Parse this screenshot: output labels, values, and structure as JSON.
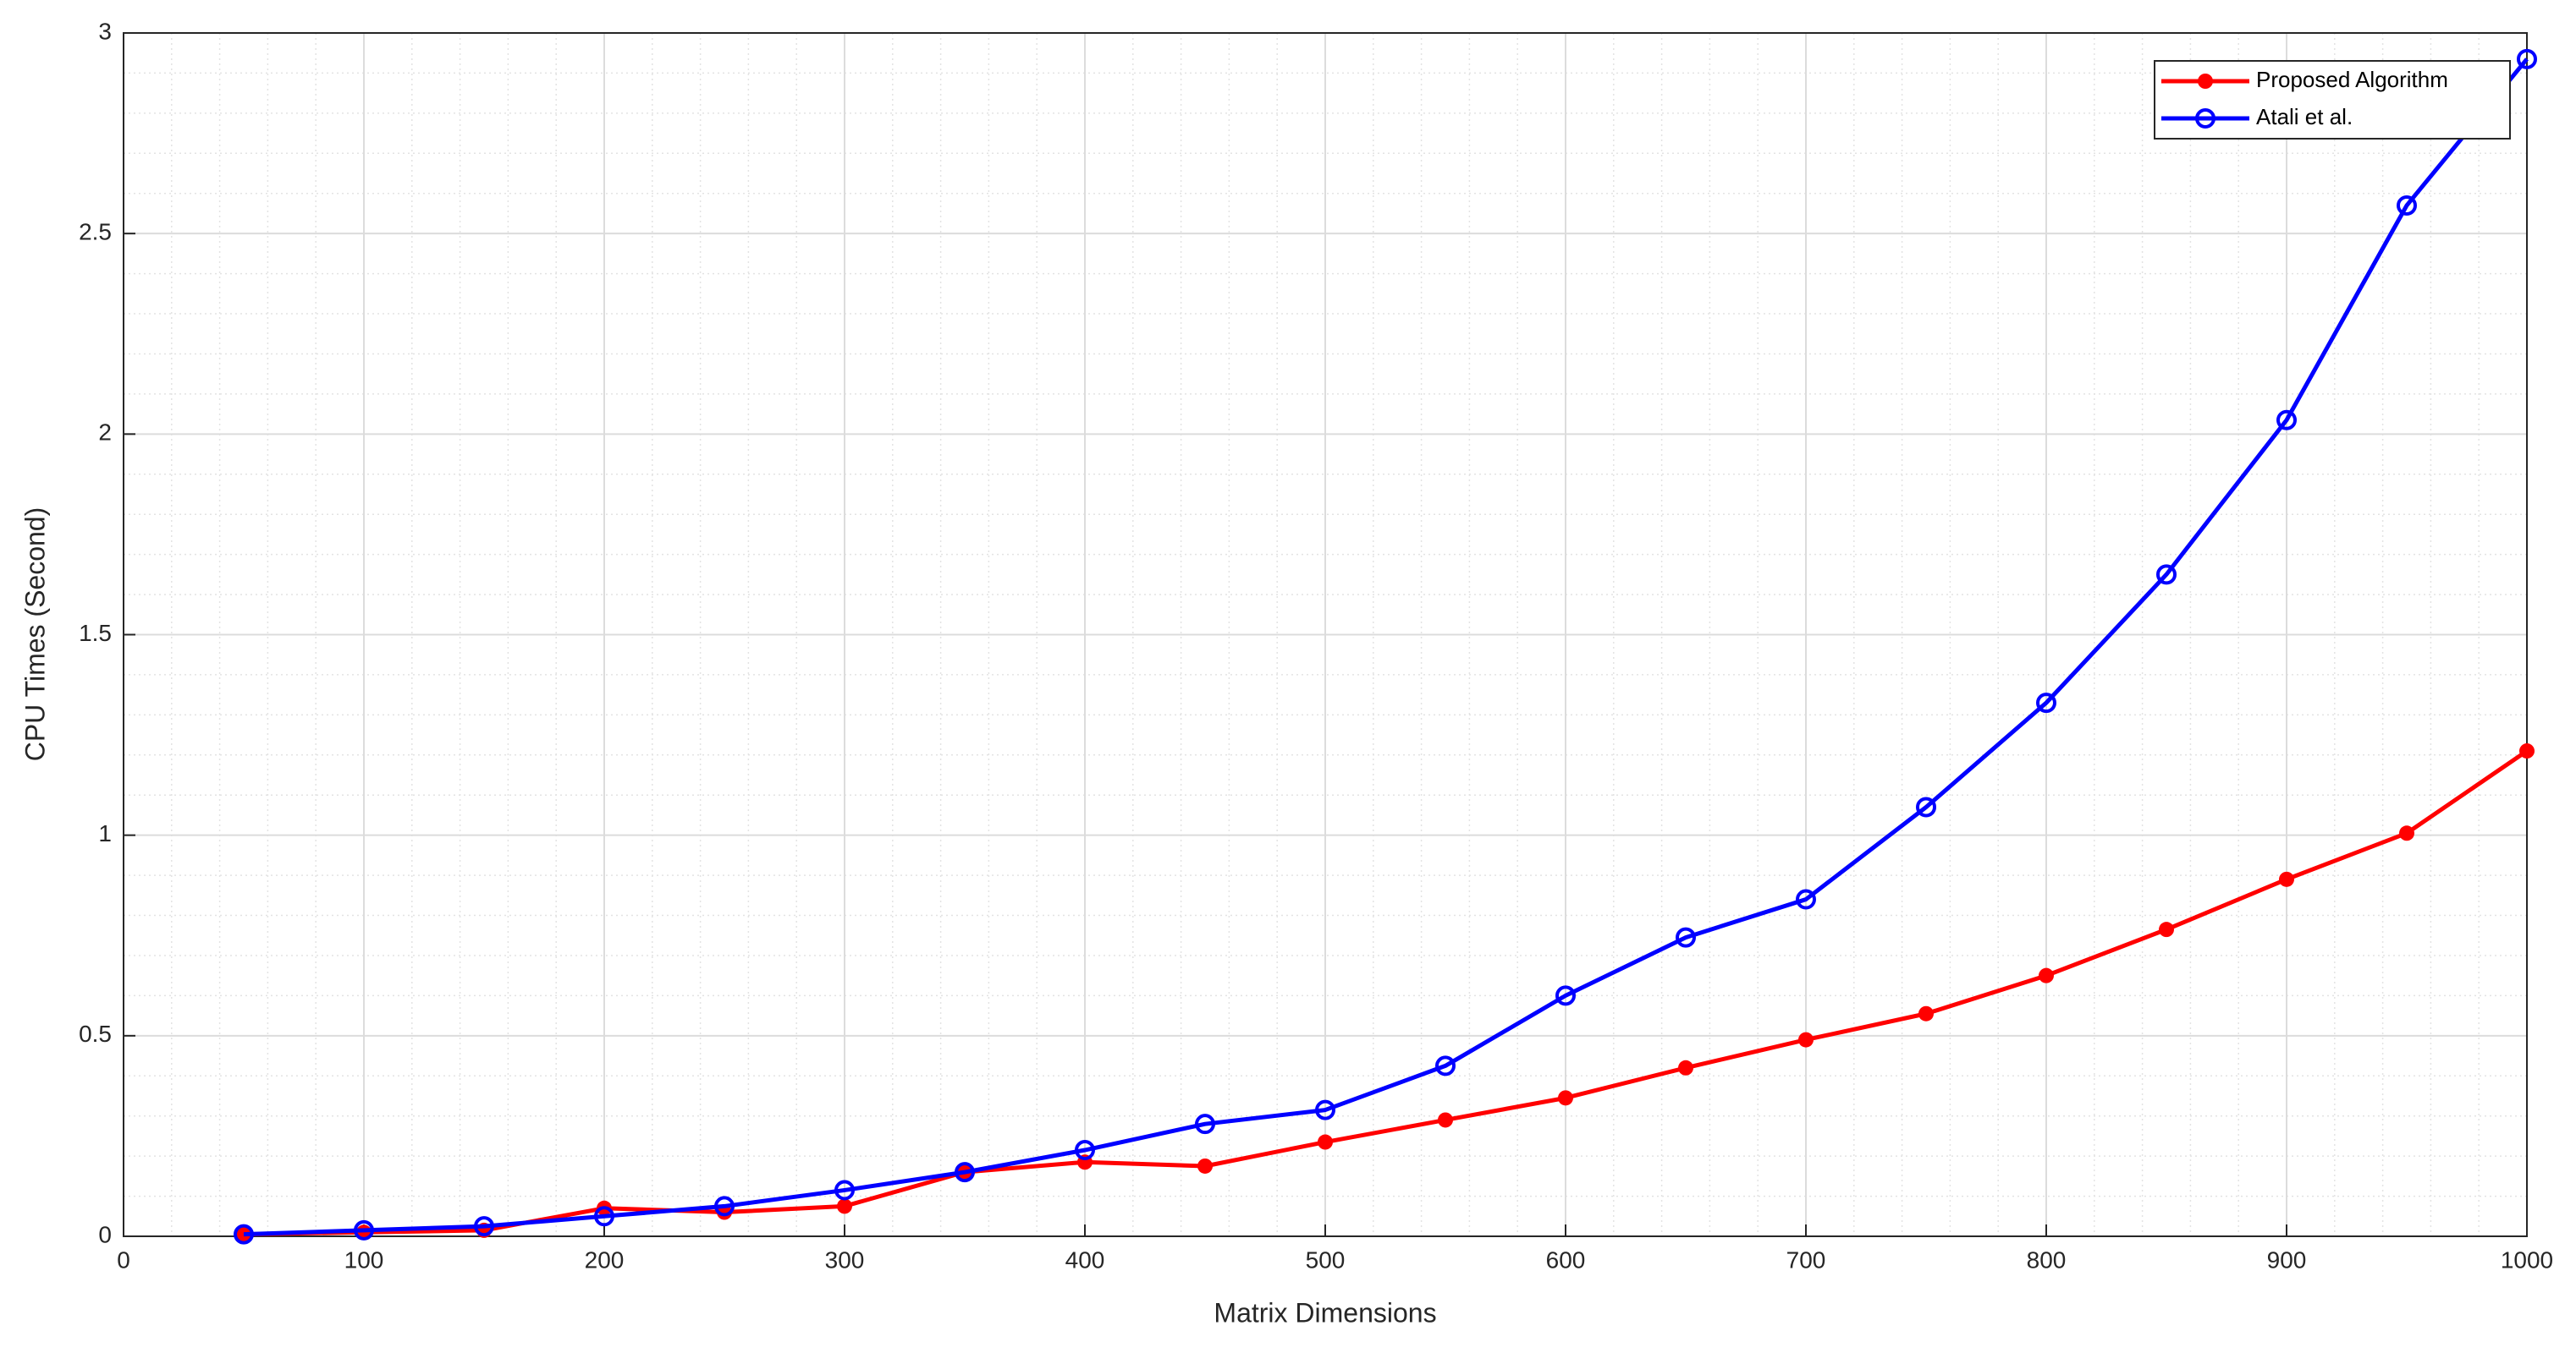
{
  "chart_data": {
    "type": "line",
    "x_label": "Matrix Dimensions",
    "y_label": "CPU Times (Second)",
    "x": [
      50,
      100,
      150,
      200,
      250,
      300,
      350,
      400,
      450,
      500,
      550,
      600,
      650,
      700,
      750,
      800,
      850,
      900,
      950,
      1000
    ],
    "series": [
      {
        "name": "Proposed Algorithm",
        "color": "#ff0000",
        "marker": "filled",
        "values": [
          0.005,
          0.01,
          0.015,
          0.07,
          0.06,
          0.075,
          0.16,
          0.185,
          0.175,
          0.235,
          0.29,
          0.345,
          0.42,
          0.49,
          0.555,
          0.65,
          0.765,
          0.89,
          1.005,
          1.21
        ]
      },
      {
        "name": "Atali et al.",
        "color": "#0000ff",
        "marker": "open-circle",
        "values": [
          0.005,
          0.015,
          0.025,
          0.05,
          0.075,
          0.115,
          0.16,
          0.215,
          0.28,
          0.315,
          0.425,
          0.6,
          0.745,
          0.84,
          1.07,
          1.33,
          1.65,
          2.035,
          2.57,
          2.935
        ]
      }
    ],
    "xlim": [
      0,
      1000
    ],
    "xticks": [
      0,
      100,
      200,
      300,
      400,
      500,
      600,
      700,
      800,
      900,
      1000
    ],
    "ylim": [
      0,
      3
    ],
    "yticks": [
      0,
      0.5,
      1,
      1.5,
      2,
      2.5,
      3
    ],
    "grid": true,
    "minor_grid": true,
    "legend": "upper-right"
  }
}
